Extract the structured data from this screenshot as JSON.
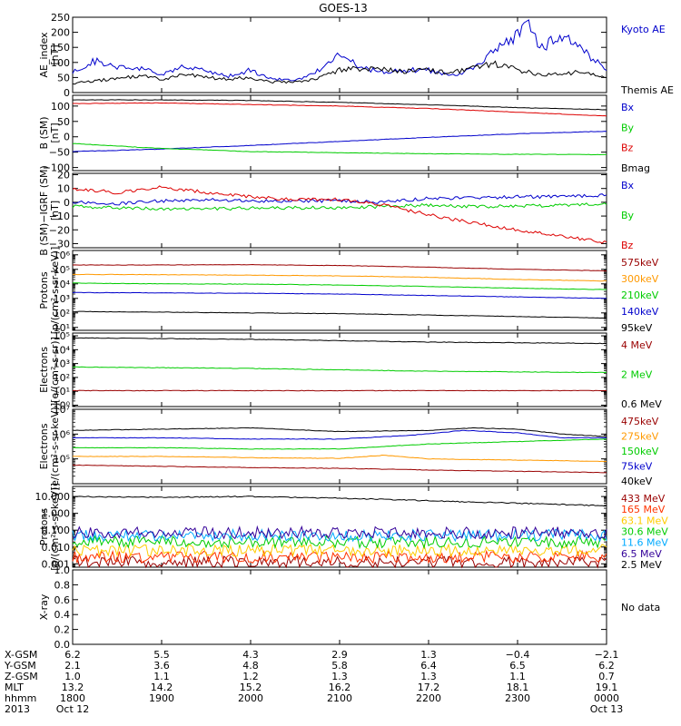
{
  "title": "GOES-13",
  "chart_data": [
    {
      "id": "ae",
      "type": "line",
      "ylabel": [
        "AE_index",
        "[nT]"
      ],
      "ylim": [
        0,
        250
      ],
      "yticks": [
        0,
        50,
        100,
        150,
        200,
        250
      ],
      "tick_labels": [
        "0",
        "50",
        "100",
        "150",
        "200",
        "250"
      ],
      "series": [
        {
          "name": "Kyoto AE",
          "color": "#0000cc",
          "x": [
            18.0,
            18.25,
            18.5,
            18.75,
            19.0,
            19.25,
            19.5,
            19.75,
            20.0,
            20.25,
            20.5,
            20.75,
            21.0,
            21.25,
            21.5,
            21.75,
            22.0,
            22.25,
            22.5,
            22.75,
            23.0,
            23.1,
            23.25,
            23.5,
            23.75,
            24.0
          ],
          "y": [
            65,
            105,
            85,
            80,
            60,
            85,
            70,
            55,
            75,
            45,
            40,
            70,
            125,
            80,
            70,
            75,
            75,
            55,
            80,
            140,
            190,
            230,
            150,
            185,
            140,
            70
          ]
        },
        {
          "name": "Themis AE",
          "color": "#000000",
          "x": [
            18.0,
            18.25,
            18.5,
            18.75,
            19.0,
            19.25,
            19.5,
            19.75,
            20.0,
            20.25,
            20.5,
            20.75,
            21.0,
            21.25,
            21.5,
            21.75,
            22.0,
            22.25,
            22.5,
            22.75,
            23.0,
            23.25,
            23.5,
            23.75,
            24.0
          ],
          "y": [
            30,
            40,
            45,
            55,
            45,
            60,
            50,
            45,
            50,
            35,
            35,
            45,
            75,
            80,
            75,
            70,
            75,
            65,
            85,
            95,
            75,
            60,
            60,
            70,
            45
          ]
        }
      ]
    },
    {
      "id": "bsm",
      "type": "line",
      "ylabel": [
        "B (SM)",
        "[nT]"
      ],
      "ylim": [
        -110,
        135
      ],
      "yticks": [
        -100,
        -50,
        0,
        50,
        100
      ],
      "tick_labels": [
        "−100",
        "−50",
        "0",
        "50",
        "100"
      ],
      "series": [
        {
          "name": "Bx",
          "color": "#0000cc",
          "x": [
            18,
            19,
            20,
            21,
            22,
            23,
            24
          ],
          "y": [
            -48,
            -40,
            -28,
            -15,
            -2,
            10,
            18
          ]
        },
        {
          "name": "By",
          "color": "#00cc00",
          "x": [
            18,
            19,
            20,
            21,
            22,
            23,
            24
          ],
          "y": [
            -22,
            -38,
            -48,
            -52,
            -55,
            -57,
            -58
          ]
        },
        {
          "name": "Bz",
          "color": "#dd0000",
          "x": [
            18,
            19,
            20,
            21,
            22,
            23,
            24
          ],
          "y": [
            108,
            110,
            105,
            100,
            92,
            80,
            68
          ]
        },
        {
          "name": "Bmag",
          "color": "#000000",
          "x": [
            18,
            19,
            20,
            21,
            22,
            23,
            24
          ],
          "y": [
            120,
            120,
            118,
            112,
            104,
            95,
            88
          ]
        }
      ]
    },
    {
      "id": "bigrf",
      "type": "line",
      "ylabel": [
        "B (SM)−IGRF (SM)",
        "[nT]"
      ],
      "ylim": [
        -33,
        21
      ],
      "yticks": [
        -30,
        -20,
        -10,
        0,
        10,
        20
      ],
      "tick_labels": [
        "−30",
        "−20",
        "−10",
        "0",
        "10",
        "20"
      ],
      "series": [
        {
          "name": "Bx",
          "color": "#0000cc",
          "x": [
            18,
            18.5,
            19,
            19.5,
            20,
            20.5,
            21,
            21.5,
            22,
            22.5,
            23,
            23.5,
            24
          ],
          "y": [
            0,
            -1,
            1,
            2,
            1,
            1,
            1,
            0,
            3,
            3,
            4,
            4,
            5
          ]
        },
        {
          "name": "By",
          "color": "#00cc00",
          "x": [
            18,
            18.5,
            19,
            19.5,
            20,
            20.5,
            21,
            21.5,
            22,
            22.5,
            23,
            23.5,
            24
          ],
          "y": [
            -3,
            -4,
            -5,
            -5,
            -4,
            -4,
            -4,
            -3,
            -2,
            -3,
            -3,
            -2,
            -1
          ]
        },
        {
          "name": "Bz",
          "color": "#dd0000",
          "x": [
            18,
            18.5,
            19,
            19.5,
            20,
            20.5,
            21,
            21.5,
            22,
            22.5,
            23,
            23.5,
            24
          ],
          "y": [
            10,
            7,
            11,
            7,
            4,
            2,
            2,
            -2,
            -9,
            -15,
            -20,
            -25,
            -29
          ]
        }
      ]
    },
    {
      "id": "protons_low",
      "type": "line",
      "log": true,
      "ylabel": [
        "Protons",
        "[p/(cm²-s-sr-keV)]"
      ],
      "ylim_exp": [
        0.8,
        6.3
      ],
      "yticks_exp": [
        1,
        2,
        3,
        4,
        5,
        6
      ],
      "tick_labels": [
        "10¹",
        "10²",
        "10³",
        "10⁴",
        "10⁵",
        "10⁶"
      ],
      "series": [
        {
          "name": "575keV",
          "color": "#990000",
          "x": [
            18,
            19,
            20,
            21,
            22,
            23,
            24
          ],
          "y_exp": [
            5.3,
            5.3,
            5.32,
            5.26,
            5.15,
            5.0,
            4.9
          ]
        },
        {
          "name": "300keV",
          "color": "#ff9900",
          "x": [
            18,
            19,
            20,
            21,
            22,
            23,
            24
          ],
          "y_exp": [
            4.65,
            4.63,
            4.6,
            4.55,
            4.45,
            4.3,
            4.2
          ]
        },
        {
          "name": "210keV",
          "color": "#00cc00",
          "x": [
            18,
            19,
            20,
            21,
            22,
            23,
            24
          ],
          "y_exp": [
            4.05,
            4.0,
            3.98,
            3.92,
            3.82,
            3.7,
            3.6
          ]
        },
        {
          "name": "140keV",
          "color": "#0000cc",
          "x": [
            18,
            19,
            20,
            21,
            22,
            23,
            24
          ],
          "y_exp": [
            3.4,
            3.38,
            3.35,
            3.3,
            3.2,
            3.1,
            3.0
          ]
        },
        {
          "name": "95keV",
          "color": "#000000",
          "x": [
            18,
            19,
            20,
            21,
            22,
            23,
            24
          ],
          "y_exp": [
            2.1,
            2.05,
            2.0,
            1.95,
            1.85,
            1.75,
            1.65
          ]
        }
      ]
    },
    {
      "id": "electrons_high",
      "type": "line",
      "log": true,
      "ylabel": [
        "Electrons",
        "[e/(cm²-s-sr)]"
      ],
      "ylim_exp": [
        -0.1,
        5.2
      ],
      "yticks_exp": [
        0,
        1,
        2,
        3,
        4,
        5
      ],
      "tick_labels": [
        "10⁰",
        "10¹",
        "10²",
        "10³",
        "10⁴",
        "10⁵"
      ],
      "series": [
        {
          "name": "4 MeV",
          "color": "#990000",
          "x": [
            18,
            19,
            20,
            21,
            22,
            23,
            24
          ],
          "y_exp": [
            1.05,
            1.05,
            1.05,
            1.05,
            1.05,
            1.05,
            1.05
          ]
        },
        {
          "name": "2 MeV",
          "color": "#00cc00",
          "x": [
            18,
            19,
            20,
            21,
            22,
            23,
            24
          ],
          "y_exp": [
            2.75,
            2.7,
            2.65,
            2.55,
            2.45,
            2.4,
            2.35
          ]
        },
        {
          "name": "0.6 MeV",
          "color": "#000000",
          "x": [
            18,
            19,
            20,
            21,
            22,
            23,
            24
          ],
          "y_exp": [
            4.85,
            4.8,
            4.75,
            4.65,
            4.55,
            4.5,
            4.45
          ]
        }
      ]
    },
    {
      "id": "electrons_low",
      "type": "line",
      "log": true,
      "ylabel": [
        "Electrons",
        "[e/(cm²-s-sr-keV)]"
      ],
      "ylim_exp": [
        4.0,
        7.0
      ],
      "yticks_exp": [
        5,
        6,
        7
      ],
      "tick_labels": [
        "10⁵",
        "10⁶",
        "10⁷"
      ],
      "series": [
        {
          "name": "475keV",
          "color": "#990000",
          "x": [
            18,
            19,
            20,
            21,
            22,
            23,
            24
          ],
          "y_exp": [
            4.75,
            4.7,
            4.65,
            4.62,
            4.55,
            4.5,
            4.45
          ]
        },
        {
          "name": "275keV",
          "color": "#ff9900",
          "x": [
            18,
            19,
            20,
            21,
            21.5,
            22,
            23,
            24
          ],
          "y_exp": [
            5.1,
            5.1,
            5.05,
            5.02,
            5.15,
            5.0,
            4.95,
            4.9
          ]
        },
        {
          "name": "150keV",
          "color": "#00cc00",
          "x": [
            18,
            19,
            20,
            21,
            21.5,
            22,
            23,
            24
          ],
          "y_exp": [
            5.45,
            5.45,
            5.4,
            5.4,
            5.5,
            5.6,
            5.7,
            5.8
          ]
        },
        {
          "name": "75keV",
          "color": "#0000cc",
          "x": [
            18,
            19,
            20,
            21,
            21.8,
            22.4,
            23,
            23.5,
            24
          ],
          "y_exp": [
            5.85,
            5.85,
            5.8,
            5.8,
            5.95,
            6.15,
            6.05,
            5.85,
            5.85
          ]
        },
        {
          "name": "40keV",
          "color": "#000000",
          "x": [
            18,
            19,
            20,
            21,
            22,
            22.5,
            23,
            23.5,
            24
          ],
          "y_exp": [
            6.15,
            6.2,
            6.25,
            6.1,
            6.15,
            6.25,
            6.2,
            6.0,
            5.9
          ]
        }
      ]
    },
    {
      "id": "protons_high",
      "type": "line",
      "log": true,
      "ylabel": [
        "Protons",
        "[p/(cm²-s-sr-keV)]"
      ],
      "ylim_exp": [
        -3.2,
        1.6
      ],
      "yticks_exp": [
        -3,
        -2,
        -1,
        0,
        1
      ],
      "tick_labels": [
        "0.001",
        "0.010",
        "0.100",
        "1.000",
        "10.000"
      ],
      "series": [
        {
          "name": "433 MeV",
          "color": "#990000",
          "x": [
            18,
            21,
            24
          ],
          "y_exp": [
            -2.9,
            -2.9,
            -2.9
          ]
        },
        {
          "name": "165 MeV",
          "color": "#ff3300",
          "x": [
            18,
            21,
            24
          ],
          "y_exp": [
            -2.6,
            -2.6,
            -2.6
          ]
        },
        {
          "name": "63.1 MeV",
          "color": "#ffcc00",
          "x": [
            18,
            21,
            24
          ],
          "y_exp": [
            -2.2,
            -2.2,
            -2.2
          ]
        },
        {
          "name": "30.6 MeV",
          "color": "#00cc00",
          "x": [
            18,
            21,
            24
          ],
          "y_exp": [
            -1.7,
            -1.7,
            -1.7
          ]
        },
        {
          "name": "11.6 MeV",
          "color": "#00aaff",
          "x": [
            18,
            21,
            24
          ],
          "y_exp": [
            -1.3,
            -1.3,
            -1.3
          ]
        },
        {
          "name": "6.5 MeV",
          "color": "#330099",
          "x": [
            18,
            21,
            24
          ],
          "y_exp": [
            -1.15,
            -1.15,
            -1.15
          ]
        },
        {
          "name": "2.5 MeV",
          "color": "#000000",
          "x": [
            18,
            19,
            20,
            21,
            22,
            23,
            24
          ],
          "y_exp": [
            1.0,
            0.95,
            1.0,
            0.9,
            0.75,
            0.6,
            0.45
          ]
        }
      ]
    },
    {
      "id": "xray",
      "type": "line",
      "ylabel": [
        "X-ray",
        ""
      ],
      "ylim": [
        0.0,
        1.0
      ],
      "yticks": [
        0.0,
        0.2,
        0.4,
        0.6,
        0.8,
        1.0
      ],
      "tick_labels": [
        "0.0",
        "0.2",
        "0.4",
        "0.6",
        "0.8",
        "1.0"
      ],
      "no_data_label": "No data",
      "series": []
    }
  ],
  "x_axis": {
    "range": [
      18,
      24
    ],
    "ticks": [
      18,
      19,
      20,
      21,
      22,
      23,
      24
    ],
    "rows": [
      {
        "label": "X-GSM",
        "values": [
          "6.2",
          "5.5",
          "4.3",
          "2.9",
          "1.3",
          "−0.4",
          "−2.1"
        ]
      },
      {
        "label": "Y-GSM",
        "values": [
          "2.1",
          "3.6",
          "4.8",
          "5.8",
          "6.4",
          "6.5",
          "6.2"
        ]
      },
      {
        "label": "Z-GSM",
        "values": [
          "1.0",
          "1.1",
          "1.2",
          "1.3",
          "1.3",
          "1.1",
          "0.7"
        ]
      },
      {
        "label": "MLT",
        "values": [
          "13.2",
          "14.2",
          "15.2",
          "16.2",
          "17.2",
          "18.1",
          "19.1"
        ]
      },
      {
        "label": "hhmm",
        "values": [
          "1800",
          "1900",
          "2000",
          "2100",
          "2200",
          "2300",
          "0000"
        ]
      },
      {
        "label": "2013",
        "values": [
          "Oct 12",
          "",
          "",
          "",
          "",
          "",
          "Oct 13"
        ]
      }
    ]
  }
}
